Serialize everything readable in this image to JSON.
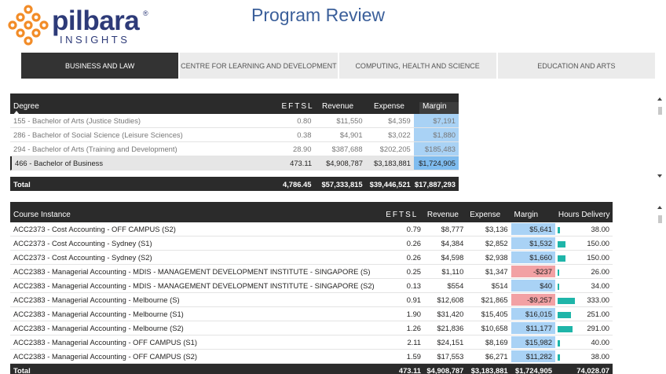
{
  "header": {
    "logo_word": "pilbara",
    "logo_reg": "®",
    "logo_sub": "INSIGHTS",
    "logo_color": "#f28c28",
    "title": "Program Review"
  },
  "tabs": [
    {
      "label": "BUSINESS AND LAW",
      "active": true
    },
    {
      "label": "CENTRE FOR LEARNING AND DEVELOPMENT",
      "active": false
    },
    {
      "label": "COMPUTING, HEALTH AND SCIENCE",
      "active": false
    },
    {
      "label": "EDUCATION AND ARTS",
      "active": false
    }
  ],
  "degree_table": {
    "headers": {
      "degree": "Degree",
      "eftsl": "EFTSL",
      "revenue": "Revenue",
      "expense": "Expense",
      "margin": "Margin"
    },
    "rows": [
      {
        "degree": "155 - Bachelor of Arts (Justice Studies)",
        "eftsl": "0.80",
        "revenue": "$11,550",
        "expense": "$4,359",
        "margin": "$7,191",
        "selected": false
      },
      {
        "degree": "286 - Bachelor of Social Science (Leisure Sciences)",
        "eftsl": "0.38",
        "revenue": "$4,901",
        "expense": "$3,022",
        "margin": "$1,880",
        "selected": false
      },
      {
        "degree": "294 - Bachelor of Arts (Training and Development)",
        "eftsl": "28.90",
        "revenue": "$387,688",
        "expense": "$202,205",
        "margin": "$185,483",
        "selected": false
      },
      {
        "degree": "466 - Bachelor of Business",
        "eftsl": "473.11",
        "revenue": "$4,908,787",
        "expense": "$3,183,881",
        "margin": "$1,724,905",
        "selected": true
      }
    ],
    "total": {
      "label": "Total",
      "eftsl": "4,786.45",
      "revenue": "$57,333,815",
      "expense": "$39,446,521",
      "margin": "$17,887,293"
    }
  },
  "course_table": {
    "headers": {
      "course": "Course Instance",
      "eftsl": "EFTSL",
      "revenue": "Revenue",
      "expense": "Expense",
      "margin": "Margin",
      "hours": "Hours Delivery"
    },
    "rows": [
      {
        "course": "ACC2373 - Cost Accounting - OFF CAMPUS (S2)",
        "eftsl": "0.79",
        "revenue": "$8,777",
        "expense": "$3,136",
        "margin": "$5,641",
        "margin_type": "pos",
        "hours": "38.00",
        "hours_num": 38
      },
      {
        "course": "ACC2373 - Cost Accounting - Sydney (S1)",
        "eftsl": "0.26",
        "revenue": "$4,384",
        "expense": "$2,852",
        "margin": "$1,532",
        "margin_type": "pos",
        "hours": "150.00",
        "hours_num": 150
      },
      {
        "course": "ACC2373 - Cost Accounting - Sydney (S2)",
        "eftsl": "0.26",
        "revenue": "$4,598",
        "expense": "$2,938",
        "margin": "$1,660",
        "margin_type": "pos",
        "hours": "150.00",
        "hours_num": 150
      },
      {
        "course": "ACC2383 - Managerial Accounting - MDIS - MANAGEMENT DEVELOPMENT INSTITUTE - SINGAPORE (S)",
        "eftsl": "0.25",
        "revenue": "$1,110",
        "expense": "$1,347",
        "margin": "-$237",
        "margin_type": "neg",
        "hours": "26.00",
        "hours_num": 26
      },
      {
        "course": "ACC2383 - Managerial Accounting - MDIS - MANAGEMENT DEVELOPMENT INSTITUTE - SINGAPORE (S2)",
        "eftsl": "0.13",
        "revenue": "$554",
        "expense": "$514",
        "margin": "$40",
        "margin_type": "pos",
        "hours": "34.00",
        "hours_num": 34
      },
      {
        "course": "ACC2383 - Managerial Accounting - Melbourne (S)",
        "eftsl": "0.91",
        "revenue": "$12,608",
        "expense": "$21,865",
        "margin": "-$9,257",
        "margin_type": "neg",
        "hours": "333.00",
        "hours_num": 333
      },
      {
        "course": "ACC2383 - Managerial Accounting - Melbourne (S1)",
        "eftsl": "1.90",
        "revenue": "$31,420",
        "expense": "$15,405",
        "margin": "$16,015",
        "margin_type": "pos",
        "hours": "251.00",
        "hours_num": 251
      },
      {
        "course": "ACC2383 - Managerial Accounting - Melbourne (S2)",
        "eftsl": "1.26",
        "revenue": "$21,836",
        "expense": "$10,658",
        "margin": "$11,177",
        "margin_type": "pos",
        "hours": "291.00",
        "hours_num": 291
      },
      {
        "course": "ACC2383 - Managerial Accounting - OFF CAMPUS (S1)",
        "eftsl": "2.11",
        "revenue": "$24,151",
        "expense": "$8,169",
        "margin": "$15,982",
        "margin_type": "pos",
        "hours": "40.00",
        "hours_num": 40
      },
      {
        "course": "ACC2383 - Managerial Accounting - OFF CAMPUS (S2)",
        "eftsl": "1.59",
        "revenue": "$17,553",
        "expense": "$6,271",
        "margin": "$11,282",
        "margin_type": "pos",
        "hours": "38.00",
        "hours_num": 38
      }
    ],
    "hours_max": 333,
    "total": {
      "label": "Total",
      "eftsl": "473.11",
      "revenue": "$4,908,787",
      "expense": "$3,183,881",
      "margin": "$1,724,905",
      "hours": "74,028.07"
    }
  },
  "colors": {
    "margin_positive": "#a9d2f5",
    "margin_negative": "#f2a1a4",
    "hours_bar": "#1fb5a9",
    "header_bg": "#2b2b2b",
    "title": "#3b5f9a"
  }
}
